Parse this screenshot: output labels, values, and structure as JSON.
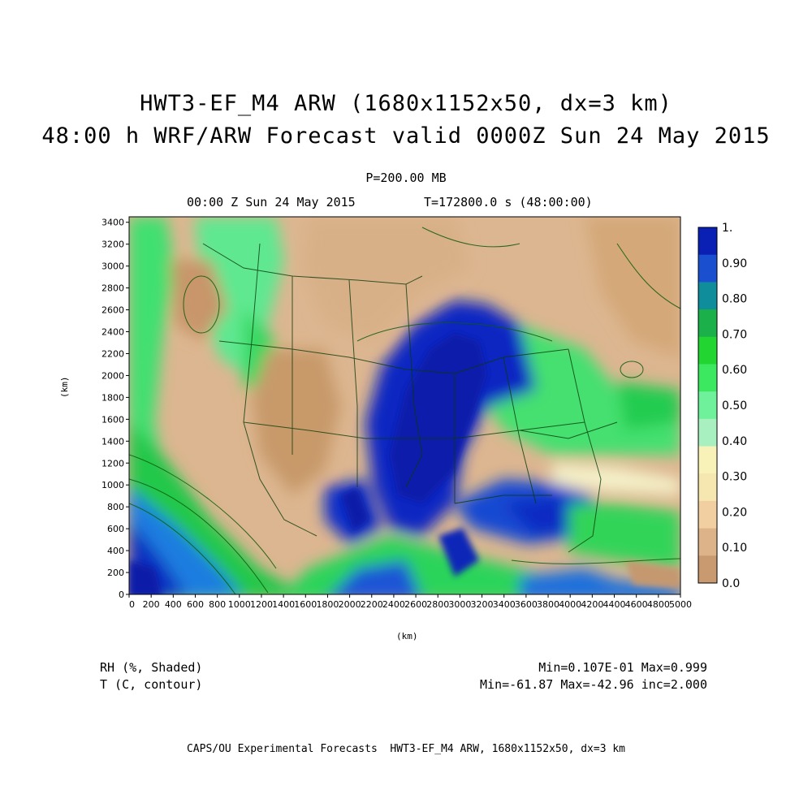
{
  "title": {
    "line1": "HWT3-EF_M4 ARW (1680x1152x50, dx=3 km)",
    "line2": "48:00 h WRF/ARW Forecast valid 0000Z Sun 24 May 2015"
  },
  "subtitle": {
    "level": "P=200.00 MB",
    "time": "00:00 Z Sun 24 May 2015",
    "seconds": "T=172800.0 s (48:00:00)"
  },
  "axes": {
    "xlabel": "(km)",
    "ylabel": "(km)",
    "xticks": [
      "0",
      "200",
      "400",
      "600",
      "800",
      "1000",
      "1200",
      "1400",
      "1600",
      "1800",
      "2000",
      "2200",
      "2400",
      "2600",
      "2800",
      "3000",
      "3200",
      "3400",
      "3600",
      "3800",
      "4000",
      "4200",
      "4400",
      "4600",
      "4800",
      "5000"
    ],
    "yticks": [
      "0",
      "200",
      "400",
      "600",
      "800",
      "1000",
      "1200",
      "1400",
      "1600",
      "1800",
      "2000",
      "2200",
      "2400",
      "2600",
      "2800",
      "3000",
      "3200",
      "3400"
    ],
    "xlim": [
      0,
      5000
    ],
    "ylim": [
      0,
      3450
    ]
  },
  "colorbar": {
    "labels": [
      "1.",
      "0.90",
      "0.80",
      "0.70",
      "0.60",
      "0.50",
      "0.40",
      "0.30",
      "0.20",
      "0.10",
      "0.0"
    ],
    "colors": [
      "#0a1fb4",
      "#1a4fd0",
      "#0f8d9a",
      "#1cb04a",
      "#22d530",
      "#3ce860",
      "#6ff09a",
      "#a8f0c0",
      "#f8f2b8",
      "#f6e6b0",
      "#f2cfa0",
      "#ddb48a",
      "#c99a70"
    ]
  },
  "fields": {
    "shaded": "RH (%, Shaded)",
    "contour": "T (C, contour)",
    "shaded_stats": "Min=0.107E-01 Max=0.999",
    "contour_stats": "Min=-61.87 Max=-42.96 inc=2.000"
  },
  "footer": "CAPS/OU Experimental Forecasts  HWT3-EF_M4 ARW, 1680x1152x50, dx=3 km"
}
